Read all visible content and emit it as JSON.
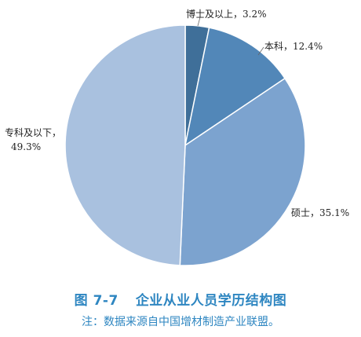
{
  "colors": {
    "caption": "#2E86C1",
    "slice_edge": "#ffffff",
    "leader": "#666666"
  },
  "caption": {
    "figure_number": "图 7-7",
    "title": "企业从业人员学历结构图",
    "source": "注：数据来源自中国增材制造产业联盟。"
  },
  "chart_data": {
    "type": "pie",
    "start_angle_deg": 0,
    "direction": "clockwise",
    "slices": [
      {
        "name": "博士及以上",
        "value": 3.2,
        "label": "博士及以上，3.2%",
        "color": "#3F6F99"
      },
      {
        "name": "本科",
        "value": 12.4,
        "label": "本科，12.4%",
        "color": "#5287B8"
      },
      {
        "name": "硕士",
        "value": 35.1,
        "label": "硕士，35.1%",
        "color": "#7CA3CF"
      },
      {
        "name": "专科及以下",
        "value": 49.3,
        "label_lines": [
          "专科及以下，",
          "49.3%"
        ],
        "color": "#A9C1DF"
      }
    ]
  }
}
